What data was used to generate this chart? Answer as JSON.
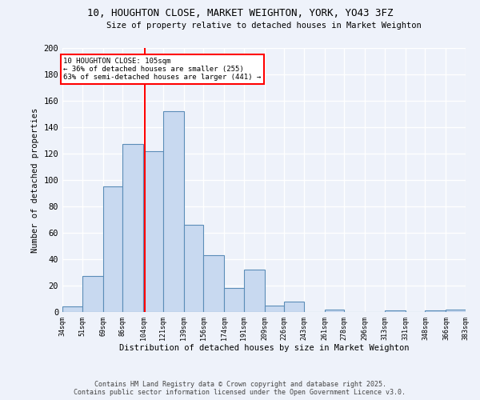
{
  "title1": "10, HOUGHTON CLOSE, MARKET WEIGHTON, YORK, YO43 3FZ",
  "title2": "Size of property relative to detached houses in Market Weighton",
  "xlabel": "Distribution of detached houses by size in Market Weighton",
  "ylabel": "Number of detached properties",
  "bin_edges": [
    34,
    51,
    69,
    86,
    104,
    121,
    139,
    156,
    174,
    191,
    209,
    226,
    243,
    261,
    278,
    296,
    313,
    331,
    348,
    366,
    383
  ],
  "bar_heights": [
    4,
    27,
    95,
    127,
    122,
    152,
    66,
    43,
    18,
    32,
    5,
    8,
    0,
    2,
    0,
    0,
    1,
    0,
    1,
    2
  ],
  "bar_color": "#c8d9f0",
  "bar_edge_color": "#5b8db8",
  "vline_x": 105,
  "vline_color": "red",
  "annotation_text": "10 HOUGHTON CLOSE: 105sqm\n← 36% of detached houses are smaller (255)\n63% of semi-detached houses are larger (441) →",
  "annotation_box_color": "white",
  "annotation_box_edge": "red",
  "ylim": [
    0,
    200
  ],
  "yticks": [
    0,
    20,
    40,
    60,
    80,
    100,
    120,
    140,
    160,
    180,
    200
  ],
  "tick_labels": [
    "34sqm",
    "51sqm",
    "69sqm",
    "86sqm",
    "104sqm",
    "121sqm",
    "139sqm",
    "156sqm",
    "174sqm",
    "191sqm",
    "209sqm",
    "226sqm",
    "243sqm",
    "261sqm",
    "278sqm",
    "296sqm",
    "313sqm",
    "331sqm",
    "348sqm",
    "366sqm",
    "383sqm"
  ],
  "footer1": "Contains HM Land Registry data © Crown copyright and database right 2025.",
  "footer2": "Contains public sector information licensed under the Open Government Licence v3.0.",
  "bg_color": "#eef2fa",
  "grid_color": "#ffffff"
}
